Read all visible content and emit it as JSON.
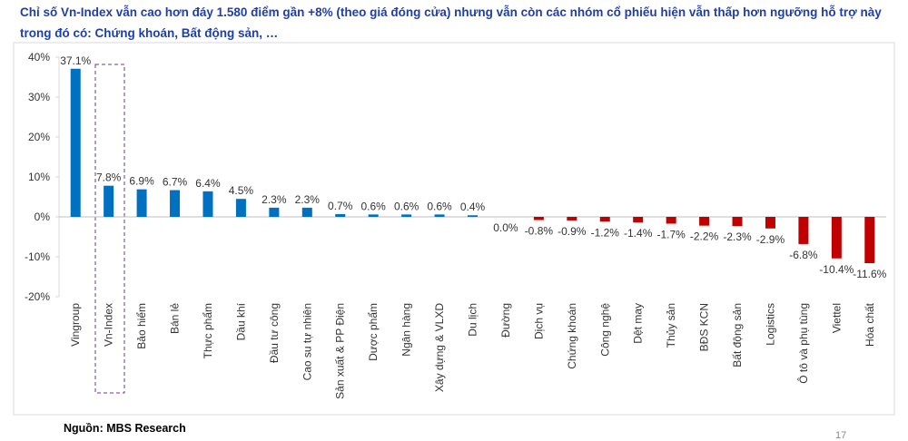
{
  "chart_data": {
    "type": "bar",
    "title": "Chỉ số Vn-Index vẫn cao hơn đáy 1.580 điểm gần +8% (theo giá đóng cửa) nhưng vẫn còn các nhóm cổ phiếu hiện vẫn thấp hơn ngưỡng hỗ trợ này trong đó có: Chứng khoán, Bất động sản, …",
    "categories": [
      "Vingroup",
      "Vn-Index",
      "Bảo hiểm",
      "Bán lẻ",
      "Thực phẩm",
      "Dầu khí",
      "Đầu tư công",
      "Cao su tự nhiên",
      "Sản xuất & PP Điện",
      "Dược phẩm",
      "Ngân hàng",
      "Xây dựng & VLXD",
      "Du lịch",
      "Đường",
      "Dịch vụ",
      "Chứng khoán",
      "Công nghệ",
      "Dệt may",
      "Thủy sản",
      "BĐS KCN",
      "Bất động sản",
      "Logistics",
      "Ô tô và phụ tùng",
      "Viettel",
      "Hóa chất"
    ],
    "values": [
      37.1,
      7.8,
      6.9,
      6.7,
      6.4,
      4.5,
      2.3,
      2.3,
      0.7,
      0.6,
      0.6,
      0.6,
      0.4,
      0.0,
      -0.8,
      -0.9,
      -1.2,
      -1.4,
      -1.7,
      -2.2,
      -2.3,
      -2.9,
      -6.8,
      -10.4,
      -11.6
    ],
    "value_labels": [
      "37.1%",
      "7.8%",
      "6.9%",
      "6.7%",
      "6.4%",
      "4.5%",
      "2.3%",
      "2.3%",
      "0.7%",
      "0.6%",
      "0.6%",
      "0.6%",
      "0.4%",
      "0.0%",
      "-0.8%",
      "-0.9%",
      "-1.2%",
      "-1.4%",
      "-1.7%",
      "-2.2%",
      "-2.3%",
      "-2.9%",
      "-6.8%",
      "-10.4%",
      "-11.6%"
    ],
    "positive_color": "#0070c0",
    "negative_color": "#c00000",
    "ylim": [
      -20,
      40
    ],
    "yticks": [
      {
        "value": -20,
        "label": "-20%"
      },
      {
        "value": -10,
        "label": "-10%"
      },
      {
        "value": 0,
        "label": "0%"
      },
      {
        "value": 10,
        "label": "10%"
      },
      {
        "value": 20,
        "label": "20%"
      },
      {
        "value": 30,
        "label": "30%"
      },
      {
        "value": 40,
        "label": "40%"
      }
    ],
    "grid": false
  },
  "source": "Nguồn: MBS Research",
  "page_number": "17"
}
